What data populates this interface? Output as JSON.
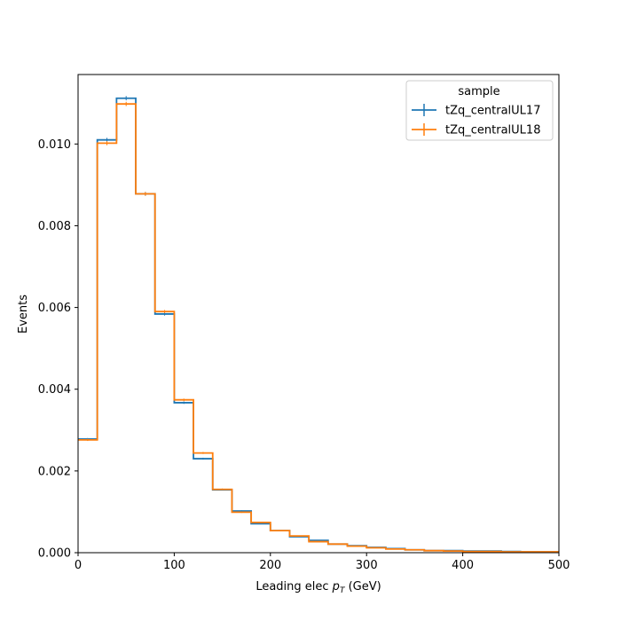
{
  "chart_data": {
    "type": "histogram-step",
    "xlabel_prefix": "Leading elec ",
    "xlabel_var": "p",
    "xlabel_sub": "T",
    "xlabel_suffix": " (GeV)",
    "ylabel": "Events",
    "xlim": [
      0,
      500
    ],
    "ylim": [
      0,
      0.0117
    ],
    "xticks": [
      0,
      100,
      200,
      300,
      400,
      500
    ],
    "yticks": [
      0.0,
      0.002,
      0.004,
      0.006,
      0.008,
      0.01
    ],
    "ytick_labels": [
      "0.000",
      "0.002",
      "0.004",
      "0.006",
      "0.008",
      "0.010"
    ],
    "bin_edges": [
      0,
      20,
      40,
      60,
      80,
      100,
      120,
      140,
      160,
      180,
      200,
      220,
      240,
      260,
      280,
      300,
      320,
      340,
      360,
      380,
      400,
      420,
      440,
      460,
      480,
      500
    ],
    "grid": false,
    "legend": {
      "title": "sample",
      "placement": "top-right"
    },
    "series": [
      {
        "name": "tZq_centralUL17",
        "color": "#1f77b4",
        "values": [
          0.00278,
          0.0101,
          0.01112,
          0.00878,
          0.00584,
          0.00367,
          0.0023,
          0.00154,
          0.00102,
          0.00071,
          0.00054,
          0.00039,
          0.0003,
          0.00021,
          0.00017,
          0.00013,
          0.0001,
          7e-05,
          5e-05,
          5e-05,
          4e-05,
          4e-05,
          3e-05,
          2e-05,
          2e-05
        ]
      },
      {
        "name": "tZq_centralUL18",
        "color": "#ff7f0e",
        "values": [
          0.00276,
          0.01002,
          0.01098,
          0.00878,
          0.0059,
          0.00374,
          0.00244,
          0.00155,
          0.00099,
          0.00074,
          0.00054,
          0.00041,
          0.00027,
          0.00021,
          0.00016,
          0.00012,
          9e-05,
          7e-05,
          5e-05,
          4e-05,
          3e-05,
          3e-05,
          2e-05,
          2e-05,
          2e-05
        ]
      }
    ]
  }
}
